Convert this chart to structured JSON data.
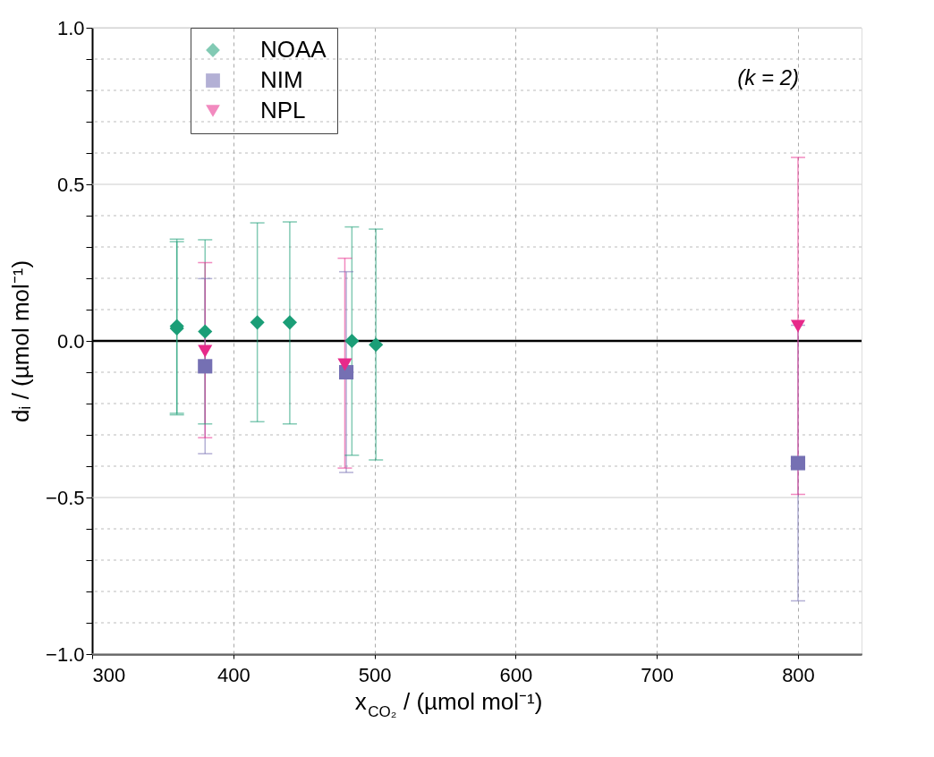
{
  "chart_data": {
    "type": "scatter",
    "xlabel": "x$_{CO₂}$ / (µmol mol⁻¹)",
    "ylabel": "dᵢ / (µmol mol⁻¹)",
    "annotations": [
      "(k = 2)"
    ],
    "xlim": [
      300,
      845
    ],
    "xticks": [
      300,
      400,
      500,
      600,
      700,
      800
    ],
    "ylim": [
      -1,
      1
    ],
    "yticks": [
      {
        "value": -1,
        "label": "−1.0"
      },
      {
        "value": -0.9,
        "label": null
      },
      {
        "value": -0.8,
        "label": null
      },
      {
        "value": -0.7,
        "label": null
      },
      {
        "value": -0.6,
        "label": null
      },
      {
        "value": -0.5,
        "label": "−0.5"
      },
      {
        "value": -0.4,
        "label": null
      },
      {
        "value": -0.3,
        "label": null
      },
      {
        "value": -0.2,
        "label": null
      },
      {
        "value": -0.1,
        "label": null
      },
      {
        "value": 0,
        "label": "0.0"
      },
      {
        "value": 0.1,
        "label": null
      },
      {
        "value": 0.2,
        "label": null
      },
      {
        "value": 0.3,
        "label": null
      },
      {
        "value": 0.4,
        "label": null
      },
      {
        "value": 0.5,
        "label": "0.5"
      },
      {
        "value": 0.6,
        "label": null
      },
      {
        "value": 0.7,
        "label": null
      },
      {
        "value": 0.8,
        "label": null
      },
      {
        "value": 0.9,
        "label": null
      },
      {
        "value": 1,
        "label": "1.0"
      }
    ],
    "grid": true,
    "legend": "top left",
    "ref_lines": [
      {
        "axis": "y",
        "value": 0,
        "label": null,
        "color": "#000000"
      }
    ],
    "series": [
      {
        "name": "NOAA",
        "color": "#1b9e77",
        "marker": "diamond",
        "x": [
          360,
          360,
          380,
          417,
          440,
          484,
          501
        ],
        "values": [
          0.047,
          0.04,
          0.03,
          0.059,
          0.059,
          0.0,
          -0.012
        ],
        "errors": [
          [
            -0.236,
            0.325
          ],
          [
            -0.231,
            0.317
          ],
          [
            -0.265,
            0.323
          ],
          [
            -0.258,
            0.377
          ],
          [
            -0.265,
            0.38
          ],
          [
            -0.365,
            0.364
          ],
          [
            -0.38,
            0.357
          ]
        ]
      },
      {
        "name": "NIM",
        "color": "#7570b3",
        "marker": "square",
        "x": [
          380,
          480,
          800
        ],
        "values": [
          -0.081,
          -0.1,
          -0.39
        ],
        "errors": [
          [
            -0.36,
            0.199
          ],
          [
            -0.42,
            0.221
          ],
          [
            -0.83,
            0.05
          ]
        ]
      },
      {
        "name": "NPL",
        "color": "#e7298a",
        "marker": "triangle",
        "x": [
          380,
          479,
          800
        ],
        "values": [
          -0.033,
          -0.076,
          0.047
        ],
        "errors": [
          [
            -0.309,
            0.25
          ],
          [
            -0.406,
            0.264
          ],
          [
            -0.49,
            0.586
          ]
        ]
      }
    ]
  }
}
